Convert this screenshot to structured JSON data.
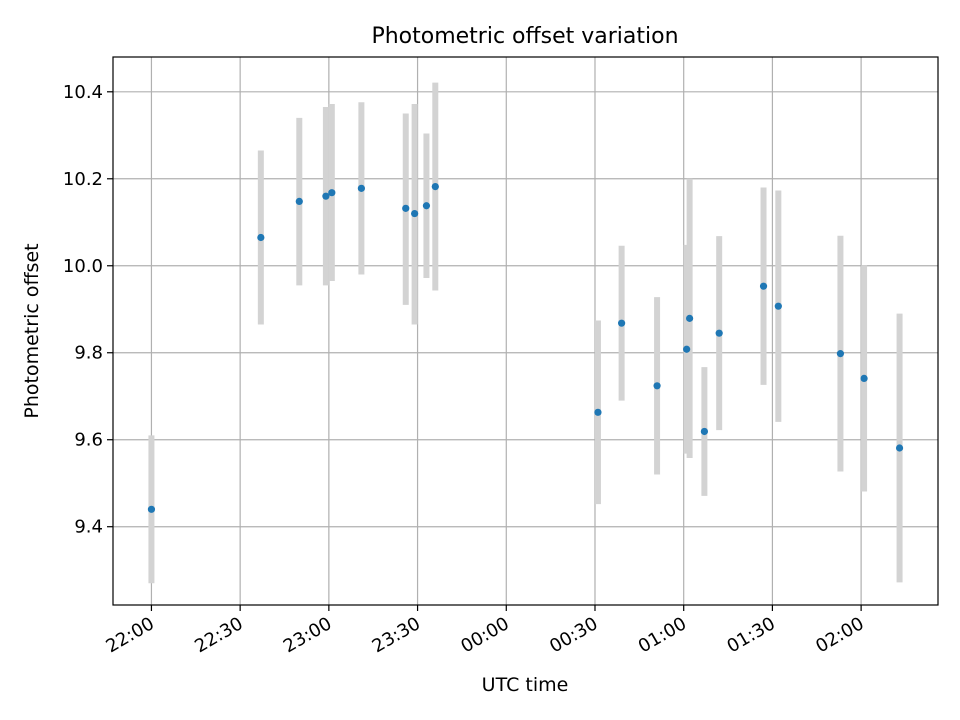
{
  "chart_data": {
    "type": "scatter",
    "title": "Photometric offset variation",
    "xlabel": "UTC time",
    "ylabel": "Photometric offset",
    "x_ticks": [
      "22:00",
      "22:30",
      "23:00",
      "23:30",
      "00:00",
      "00:30",
      "01:00",
      "01:30",
      "02:00"
    ],
    "y_ticks": [
      "9.4",
      "9.6",
      "9.8",
      "10.0",
      "10.2",
      "10.4"
    ],
    "xlim": [
      "21:47",
      "02:26"
    ],
    "ylim": [
      9.22,
      10.48
    ],
    "grid": true,
    "legend": "none",
    "colors": {
      "point": "#1f77b4",
      "errorbar": "#d3d3d3",
      "grid": "#b0b0b0"
    },
    "series": [
      {
        "points": [
          {
            "x": "22:00",
            "y": 9.44,
            "ylow": 9.27,
            "yhigh": 9.61
          },
          {
            "x": "22:37",
            "y": 10.065,
            "ylow": 9.865,
            "yhigh": 10.265
          },
          {
            "x": "22:50",
            "y": 10.148,
            "ylow": 9.955,
            "yhigh": 10.34
          },
          {
            "x": "22:59",
            "y": 10.16,
            "ylow": 9.955,
            "yhigh": 10.365
          },
          {
            "x": "23:01",
            "y": 10.168,
            "ylow": 9.965,
            "yhigh": 10.372
          },
          {
            "x": "23:11",
            "y": 10.178,
            "ylow": 9.98,
            "yhigh": 10.376
          },
          {
            "x": "23:26",
            "y": 10.132,
            "ylow": 9.91,
            "yhigh": 10.35
          },
          {
            "x": "23:29",
            "y": 10.12,
            "ylow": 9.865,
            "yhigh": 10.372
          },
          {
            "x": "23:33",
            "y": 10.138,
            "ylow": 9.972,
            "yhigh": 10.304
          },
          {
            "x": "23:36",
            "y": 10.182,
            "ylow": 9.943,
            "yhigh": 10.421
          },
          {
            "x": "00:31",
            "y": 9.663,
            "ylow": 9.452,
            "yhigh": 9.874
          },
          {
            "x": "00:39",
            "y": 9.868,
            "ylow": 9.69,
            "yhigh": 10.046
          },
          {
            "x": "00:51",
            "y": 9.724,
            "ylow": 9.52,
            "yhigh": 9.928
          },
          {
            "x": "01:01",
            "y": 9.808,
            "ylow": 9.568,
            "yhigh": 10.048
          },
          {
            "x": "01:02",
            "y": 9.879,
            "ylow": 9.558,
            "yhigh": 10.2
          },
          {
            "x": "01:07",
            "y": 9.619,
            "ylow": 9.471,
            "yhigh": 9.767
          },
          {
            "x": "01:12",
            "y": 9.845,
            "ylow": 9.622,
            "yhigh": 10.068
          },
          {
            "x": "01:27",
            "y": 9.953,
            "ylow": 9.726,
            "yhigh": 10.18
          },
          {
            "x": "01:32",
            "y": 9.907,
            "ylow": 9.641,
            "yhigh": 10.173
          },
          {
            "x": "01:53",
            "y": 9.798,
            "ylow": 9.527,
            "yhigh": 10.069
          },
          {
            "x": "02:01",
            "y": 9.741,
            "ylow": 9.481,
            "yhigh": 10.001
          },
          {
            "x": "02:13",
            "y": 9.581,
            "ylow": 9.272,
            "yhigh": 9.89
          }
        ]
      }
    ]
  }
}
